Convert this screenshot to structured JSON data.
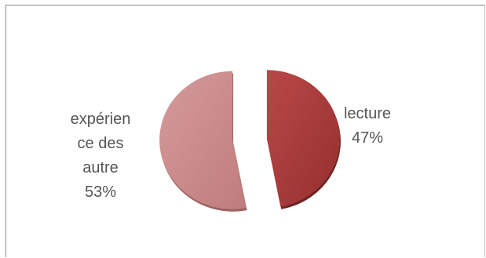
{
  "chart_data": {
    "type": "pie",
    "title": "",
    "slices": [
      {
        "label": "lecture",
        "value": 47,
        "pct_label": "47%",
        "color": "#a33a3a"
      },
      {
        "label": "expérience des autre",
        "value": 53,
        "pct_label": "53%",
        "color": "#c98888",
        "label_lines": [
          "expérien",
          "ce des",
          "autre"
        ]
      }
    ],
    "exploded": true,
    "legend": "none"
  }
}
